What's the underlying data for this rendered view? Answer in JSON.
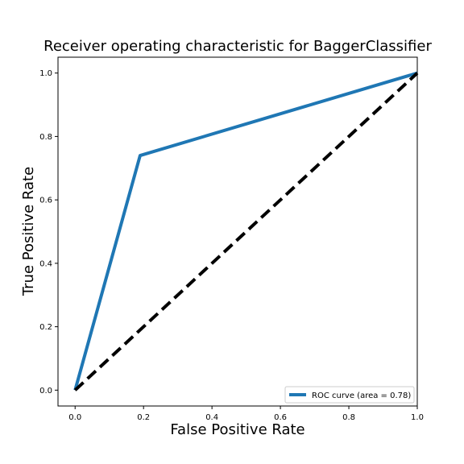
{
  "chart_data": {
    "type": "line",
    "title": "Receiver operating characteristic for BaggerClassifier",
    "xlabel": "False Positive Rate",
    "ylabel": "True Positive Rate",
    "xlim": [
      -0.05,
      1.0
    ],
    "ylim": [
      -0.05,
      1.05
    ],
    "xticks": [
      0.0,
      0.2,
      0.4,
      0.6,
      0.8,
      1.0
    ],
    "xtick_labels": [
      "0.0",
      "0.2",
      "0.4",
      "0.6",
      "0.8",
      "1.0"
    ],
    "yticks": [
      0.0,
      0.2,
      0.4,
      0.6,
      0.8,
      1.0
    ],
    "ytick_labels": [
      "0.0",
      "0.2",
      "0.4",
      "0.6",
      "0.8",
      "1.0"
    ],
    "grid": false,
    "legend_position": "lower-right",
    "series": [
      {
        "name": "ROC curve (area = 0.78)",
        "x": [
          0.0,
          0.19,
          1.0
        ],
        "y": [
          0.0,
          0.74,
          1.0
        ],
        "color": "#1f77b4",
        "style": "solid"
      },
      {
        "x": [
          0.0,
          1.0
        ],
        "y": [
          0.0,
          1.0
        ],
        "color": "#000000",
        "style": "dashed"
      }
    ]
  }
}
